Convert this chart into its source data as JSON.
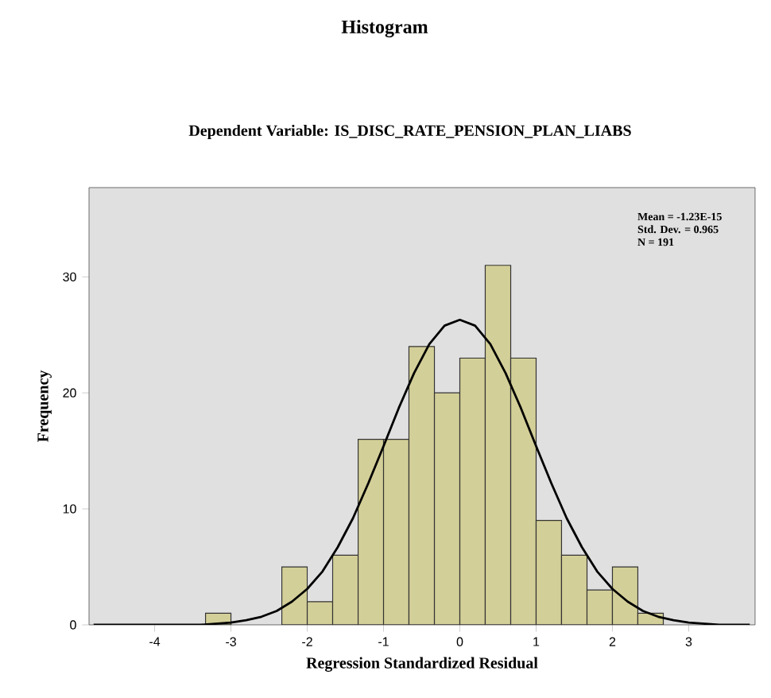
{
  "chart_data": {
    "type": "histogram",
    "title": "Histogram",
    "subtitle": "Dependent Variable: IS_DISC_RATE_PENSION_PLAN_LIABS",
    "xlabel": "Regression Standardized Residual",
    "ylabel": "Frequency",
    "bins": [
      -3.333,
      -3.0,
      -2.667,
      -2.333,
      -2.0,
      -1.667,
      -1.333,
      -1.0,
      -0.667,
      -0.333,
      0.0,
      0.333,
      0.667,
      1.0,
      1.333,
      1.667,
      2.0,
      2.333,
      2.667
    ],
    "values": [
      1,
      0,
      0,
      5,
      2,
      6,
      16,
      16,
      24,
      20,
      23,
      31,
      23,
      9,
      6,
      3,
      5,
      1
    ],
    "color": "#d3cf98",
    "series": [
      {
        "type": "line",
        "color": "#000000",
        "x": [
          -4.8,
          -4.2,
          -3.8,
          -3.4,
          -3.0,
          -2.8,
          -2.6,
          -2.4,
          -2.2,
          -2.0,
          -1.8,
          -1.6,
          -1.4,
          -1.2,
          -1.0,
          -0.8,
          -0.6,
          -0.4,
          -0.2,
          0.0,
          0.2,
          0.4,
          0.6,
          0.8,
          1.0,
          1.2,
          1.4,
          1.6,
          1.8,
          2.0,
          2.2,
          2.4,
          2.6,
          2.8,
          3.0,
          3.4,
          3.8
        ],
        "values": [
          0.0,
          0.0,
          0.0,
          0.0,
          0.2,
          0.4,
          0.7,
          1.2,
          2.0,
          3.1,
          4.6,
          6.7,
          9.2,
          12.2,
          15.4,
          18.7,
          21.7,
          24.2,
          25.8,
          26.3,
          25.8,
          24.2,
          21.7,
          18.7,
          15.4,
          12.2,
          9.2,
          6.7,
          4.6,
          3.1,
          2.0,
          1.2,
          0.7,
          0.4,
          0.2,
          0.0,
          0.0
        ]
      }
    ],
    "xlim": [
      -4.86,
      3.87
    ],
    "ylim": [
      0,
      37.7
    ],
    "xticks": [
      -4,
      -3,
      -2,
      -1,
      0,
      1,
      2,
      3
    ],
    "yticks": [
      0,
      10,
      20,
      30
    ],
    "annotations": [
      "Mean = -1.23E-15",
      "Std. Dev. = 0.965",
      "N = 191"
    ],
    "grid": false
  }
}
